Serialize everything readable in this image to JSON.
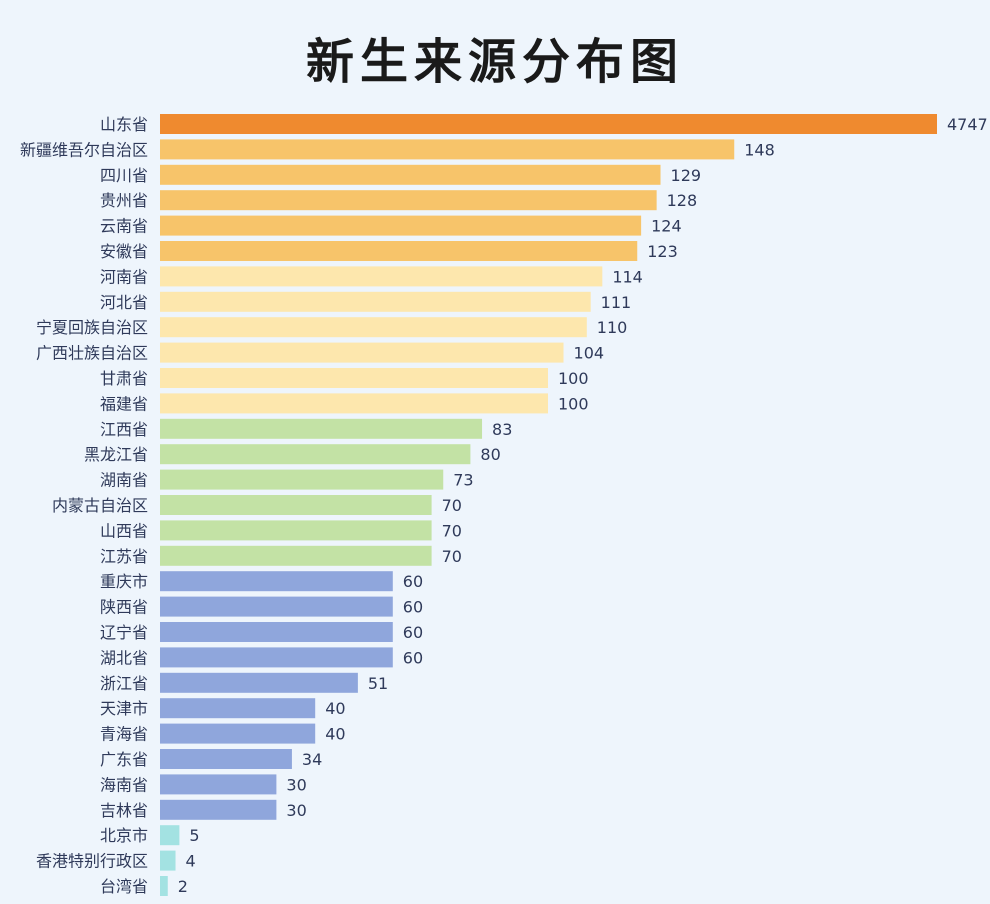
{
  "chart_data": {
    "type": "bar",
    "orientation": "horizontal",
    "title": "新生来源分布图",
    "xlabel": "",
    "ylabel": "",
    "axis_break": "first bar (4747) is truncated / not drawn to scale",
    "grid": false,
    "legend": "none",
    "categories": [
      "山东省",
      "新疆维吾尔自治区",
      "四川省",
      "贵州省",
      "云南省",
      "安徽省",
      "河南省",
      "河北省",
      "宁夏回族自治区",
      "广西壮族自治区",
      "甘肃省",
      "福建省",
      "江西省",
      "黑龙江省",
      "湖南省",
      "内蒙古自治区",
      "山西省",
      "江苏省",
      "重庆市",
      "陕西省",
      "辽宁省",
      "湖北省",
      "浙江省",
      "天津市",
      "青海省",
      "广东省",
      "海南省",
      "吉林省",
      "北京市",
      "香港特别行政区",
      "台湾省"
    ],
    "values": [
      4747,
      148,
      129,
      128,
      124,
      123,
      114,
      111,
      110,
      104,
      100,
      100,
      83,
      80,
      73,
      70,
      70,
      70,
      60,
      60,
      60,
      60,
      51,
      40,
      40,
      34,
      30,
      30,
      5,
      4,
      2
    ],
    "colors": [
      "#ef8a2f",
      "#f7c46a",
      "#f7c46a",
      "#f7c46a",
      "#f7c46a",
      "#f7c46a",
      "#fde7ad",
      "#fde7ad",
      "#fde7ad",
      "#fde7ad",
      "#fde7ad",
      "#fde7ad",
      "#c3e2a5",
      "#c3e2a5",
      "#c3e2a5",
      "#c3e2a5",
      "#c3e2a5",
      "#c3e2a5",
      "#8fa6dc",
      "#8fa6dc",
      "#8fa6dc",
      "#8fa6dc",
      "#8fa6dc",
      "#8fa6dc",
      "#8fa6dc",
      "#8fa6dc",
      "#8fa6dc",
      "#8fa6dc",
      "#a3e2e2",
      "#a3e2e2",
      "#a3e2e2"
    ]
  }
}
